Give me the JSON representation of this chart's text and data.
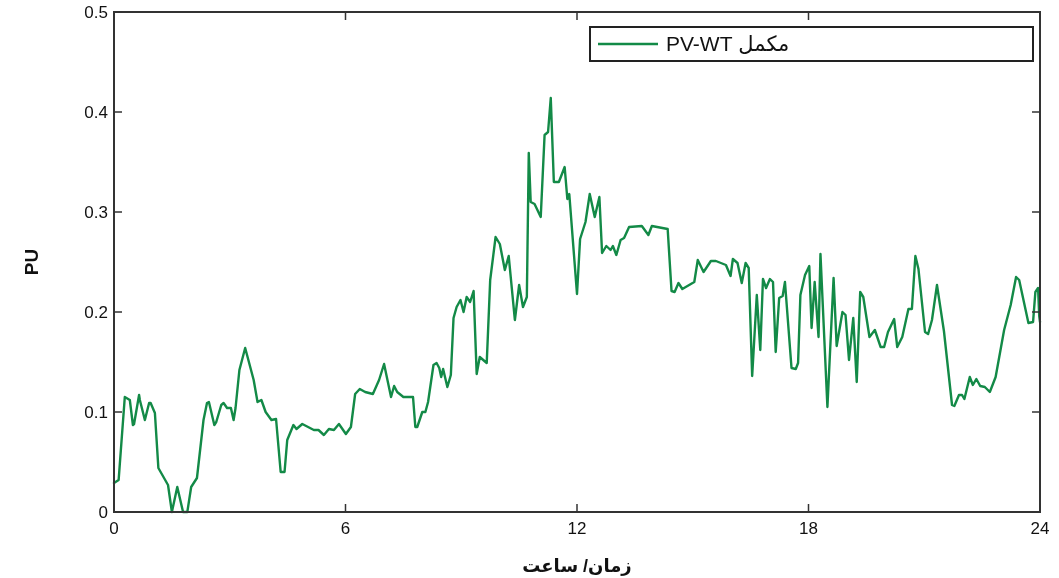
{
  "chart_data": {
    "type": "line",
    "xlabel": "زمان/ ساعت",
    "ylabel": "PU",
    "xlim": [
      0,
      24
    ],
    "ylim": [
      0,
      0.5
    ],
    "xticks": [
      0,
      6,
      12,
      18,
      24
    ],
    "yticks": [
      0,
      0.1,
      0.2,
      0.3,
      0.4,
      0.5
    ],
    "legend": "top right",
    "x": [
      0,
      0.12,
      0.28,
      0.41,
      0.49,
      0.52,
      0.65,
      0.67,
      0.8,
      0.91,
      0.95,
      1.06,
      1.15,
      1.4,
      1.5,
      1.64,
      1.79,
      1.9,
      2.0,
      2.15,
      2.32,
      2.41,
      2.46,
      2.6,
      2.65,
      2.78,
      2.84,
      2.93,
      3.03,
      3.1,
      3.15,
      3.25,
      3.4,
      3.62,
      3.72,
      3.82,
      3.93,
      4.08,
      4.2,
      4.32,
      4.42,
      4.49,
      4.65,
      4.73,
      4.88,
      5.18,
      5.3,
      5.44,
      5.57,
      5.7,
      5.83,
      6.01,
      6.14,
      6.25,
      6.37,
      6.51,
      6.71,
      6.87,
      7.0,
      7.18,
      7.26,
      7.34,
      7.5,
      7.75,
      7.81,
      7.86,
      7.99,
      8.07,
      8.14,
      8.28,
      8.36,
      8.43,
      8.48,
      8.53,
      8.64,
      8.73,
      8.8,
      8.88,
      8.98,
      9.06,
      9.14,
      9.23,
      9.32,
      9.4,
      9.48,
      9.66,
      9.75,
      9.89,
      10.0,
      10.13,
      10.23,
      10.39,
      10.5,
      10.6,
      10.7,
      10.75,
      10.8,
      10.9,
      11.06,
      11.16,
      11.25,
      11.32,
      11.4,
      11.53,
      11.68,
      11.75,
      11.8,
      12.0,
      12.08,
      12.22,
      12.33,
      12.46,
      12.58,
      12.65,
      12.76,
      12.87,
      12.93,
      13.02,
      13.13,
      13.22,
      13.35,
      13.68,
      13.85,
      13.94,
      14.35,
      14.45,
      14.53,
      14.63,
      14.73,
      15.04,
      15.13,
      15.28,
      15.47,
      15.6,
      15.86,
      15.98,
      16.04,
      16.16,
      16.27,
      16.37,
      16.45,
      16.54,
      16.66,
      16.75,
      16.82,
      16.9,
      17.0,
      17.08,
      17.15,
      17.24,
      17.33,
      17.39,
      17.56,
      17.67,
      17.73,
      17.79,
      17.91,
      18.02,
      18.08,
      18.16,
      18.26,
      18.31,
      18.49,
      18.65,
      18.73,
      18.88,
      18.96,
      19.05,
      19.16,
      19.25,
      19.34,
      19.42,
      19.58,
      19.72,
      19.87,
      19.96,
      20.06,
      20.22,
      20.3,
      20.43,
      20.59,
      20.68,
      20.77,
      20.85,
      21.02,
      21.1,
      21.2,
      21.33,
      21.51,
      21.72,
      21.78,
      21.9,
      21.98,
      22.04,
      22.18,
      22.26,
      22.35,
      22.45,
      22.57,
      22.7,
      22.85,
      23.07,
      23.24,
      23.38,
      23.46,
      23.7,
      23.82,
      23.88,
      23.95,
      23.98,
      24
    ],
    "series": [
      {
        "name": "مكمل PV-WT",
        "color": "#138a47",
        "values": [
          0.029,
          0.032,
          0.115,
          0.112,
          0.087,
          0.088,
          0.117,
          0.112,
          0.092,
          0.109,
          0.109,
          0.099,
          0.044,
          0.027,
          0,
          0.025,
          0,
          0,
          0.025,
          0.034,
          0.092,
          0.109,
          0.11,
          0.087,
          0.09,
          0.107,
          0.109,
          0.104,
          0.104,
          0.092,
          0.104,
          0.142,
          0.164,
          0.132,
          0.11,
          0.112,
          0.1,
          0.092,
          0.093,
          0.04,
          0.04,
          0.072,
          0.087,
          0.083,
          0.088,
          0.082,
          0.082,
          0.077,
          0.083,
          0.082,
          0.088,
          0.078,
          0.085,
          0.118,
          0.123,
          0.12,
          0.118,
          0.132,
          0.148,
          0.115,
          0.126,
          0.12,
          0.115,
          0.115,
          0.085,
          0.085,
          0.1,
          0.1,
          0.11,
          0.147,
          0.149,
          0.144,
          0.135,
          0.143,
          0.125,
          0.137,
          0.194,
          0.205,
          0.212,
          0.2,
          0.215,
          0.21,
          0.221,
          0.138,
          0.155,
          0.149,
          0.232,
          0.275,
          0.268,
          0.242,
          0.256,
          0.192,
          0.227,
          0.205,
          0.215,
          0.359,
          0.31,
          0.308,
          0.295,
          0.377,
          0.38,
          0.414,
          0.33,
          0.33,
          0.345,
          0.313,
          0.318,
          0.218,
          0.273,
          0.29,
          0.318,
          0.295,
          0.315,
          0.259,
          0.266,
          0.262,
          0.266,
          0.257,
          0.272,
          0.274,
          0.285,
          0.286,
          0.277,
          0.286,
          0.283,
          0.221,
          0.22,
          0.229,
          0.223,
          0.23,
          0.252,
          0.24,
          0.251,
          0.251,
          0.247,
          0.236,
          0.253,
          0.249,
          0.229,
          0.249,
          0.244,
          0.136,
          0.217,
          0.162,
          0.233,
          0.224,
          0.233,
          0.23,
          0.16,
          0.214,
          0.216,
          0.23,
          0.144,
          0.143,
          0.149,
          0.217,
          0.237,
          0.246,
          0.184,
          0.23,
          0.175,
          0.258,
          0.105,
          0.234,
          0.166,
          0.2,
          0.197,
          0.152,
          0.194,
          0.13,
          0.22,
          0.215,
          0.175,
          0.182,
          0.165,
          0.165,
          0.18,
          0.193,
          0.165,
          0.175,
          0.203,
          0.203,
          0.256,
          0.243,
          0.18,
          0.178,
          0.192,
          0.227,
          0.181,
          0.107,
          0.106,
          0.117,
          0.117,
          0.113,
          0.135,
          0.127,
          0.133,
          0.126,
          0.125,
          0.12,
          0.135,
          0.182,
          0.207,
          0.235,
          0.232,
          0.189,
          0.19,
          0.22,
          0.224,
          0.196,
          0.19
        ]
      }
    ]
  }
}
